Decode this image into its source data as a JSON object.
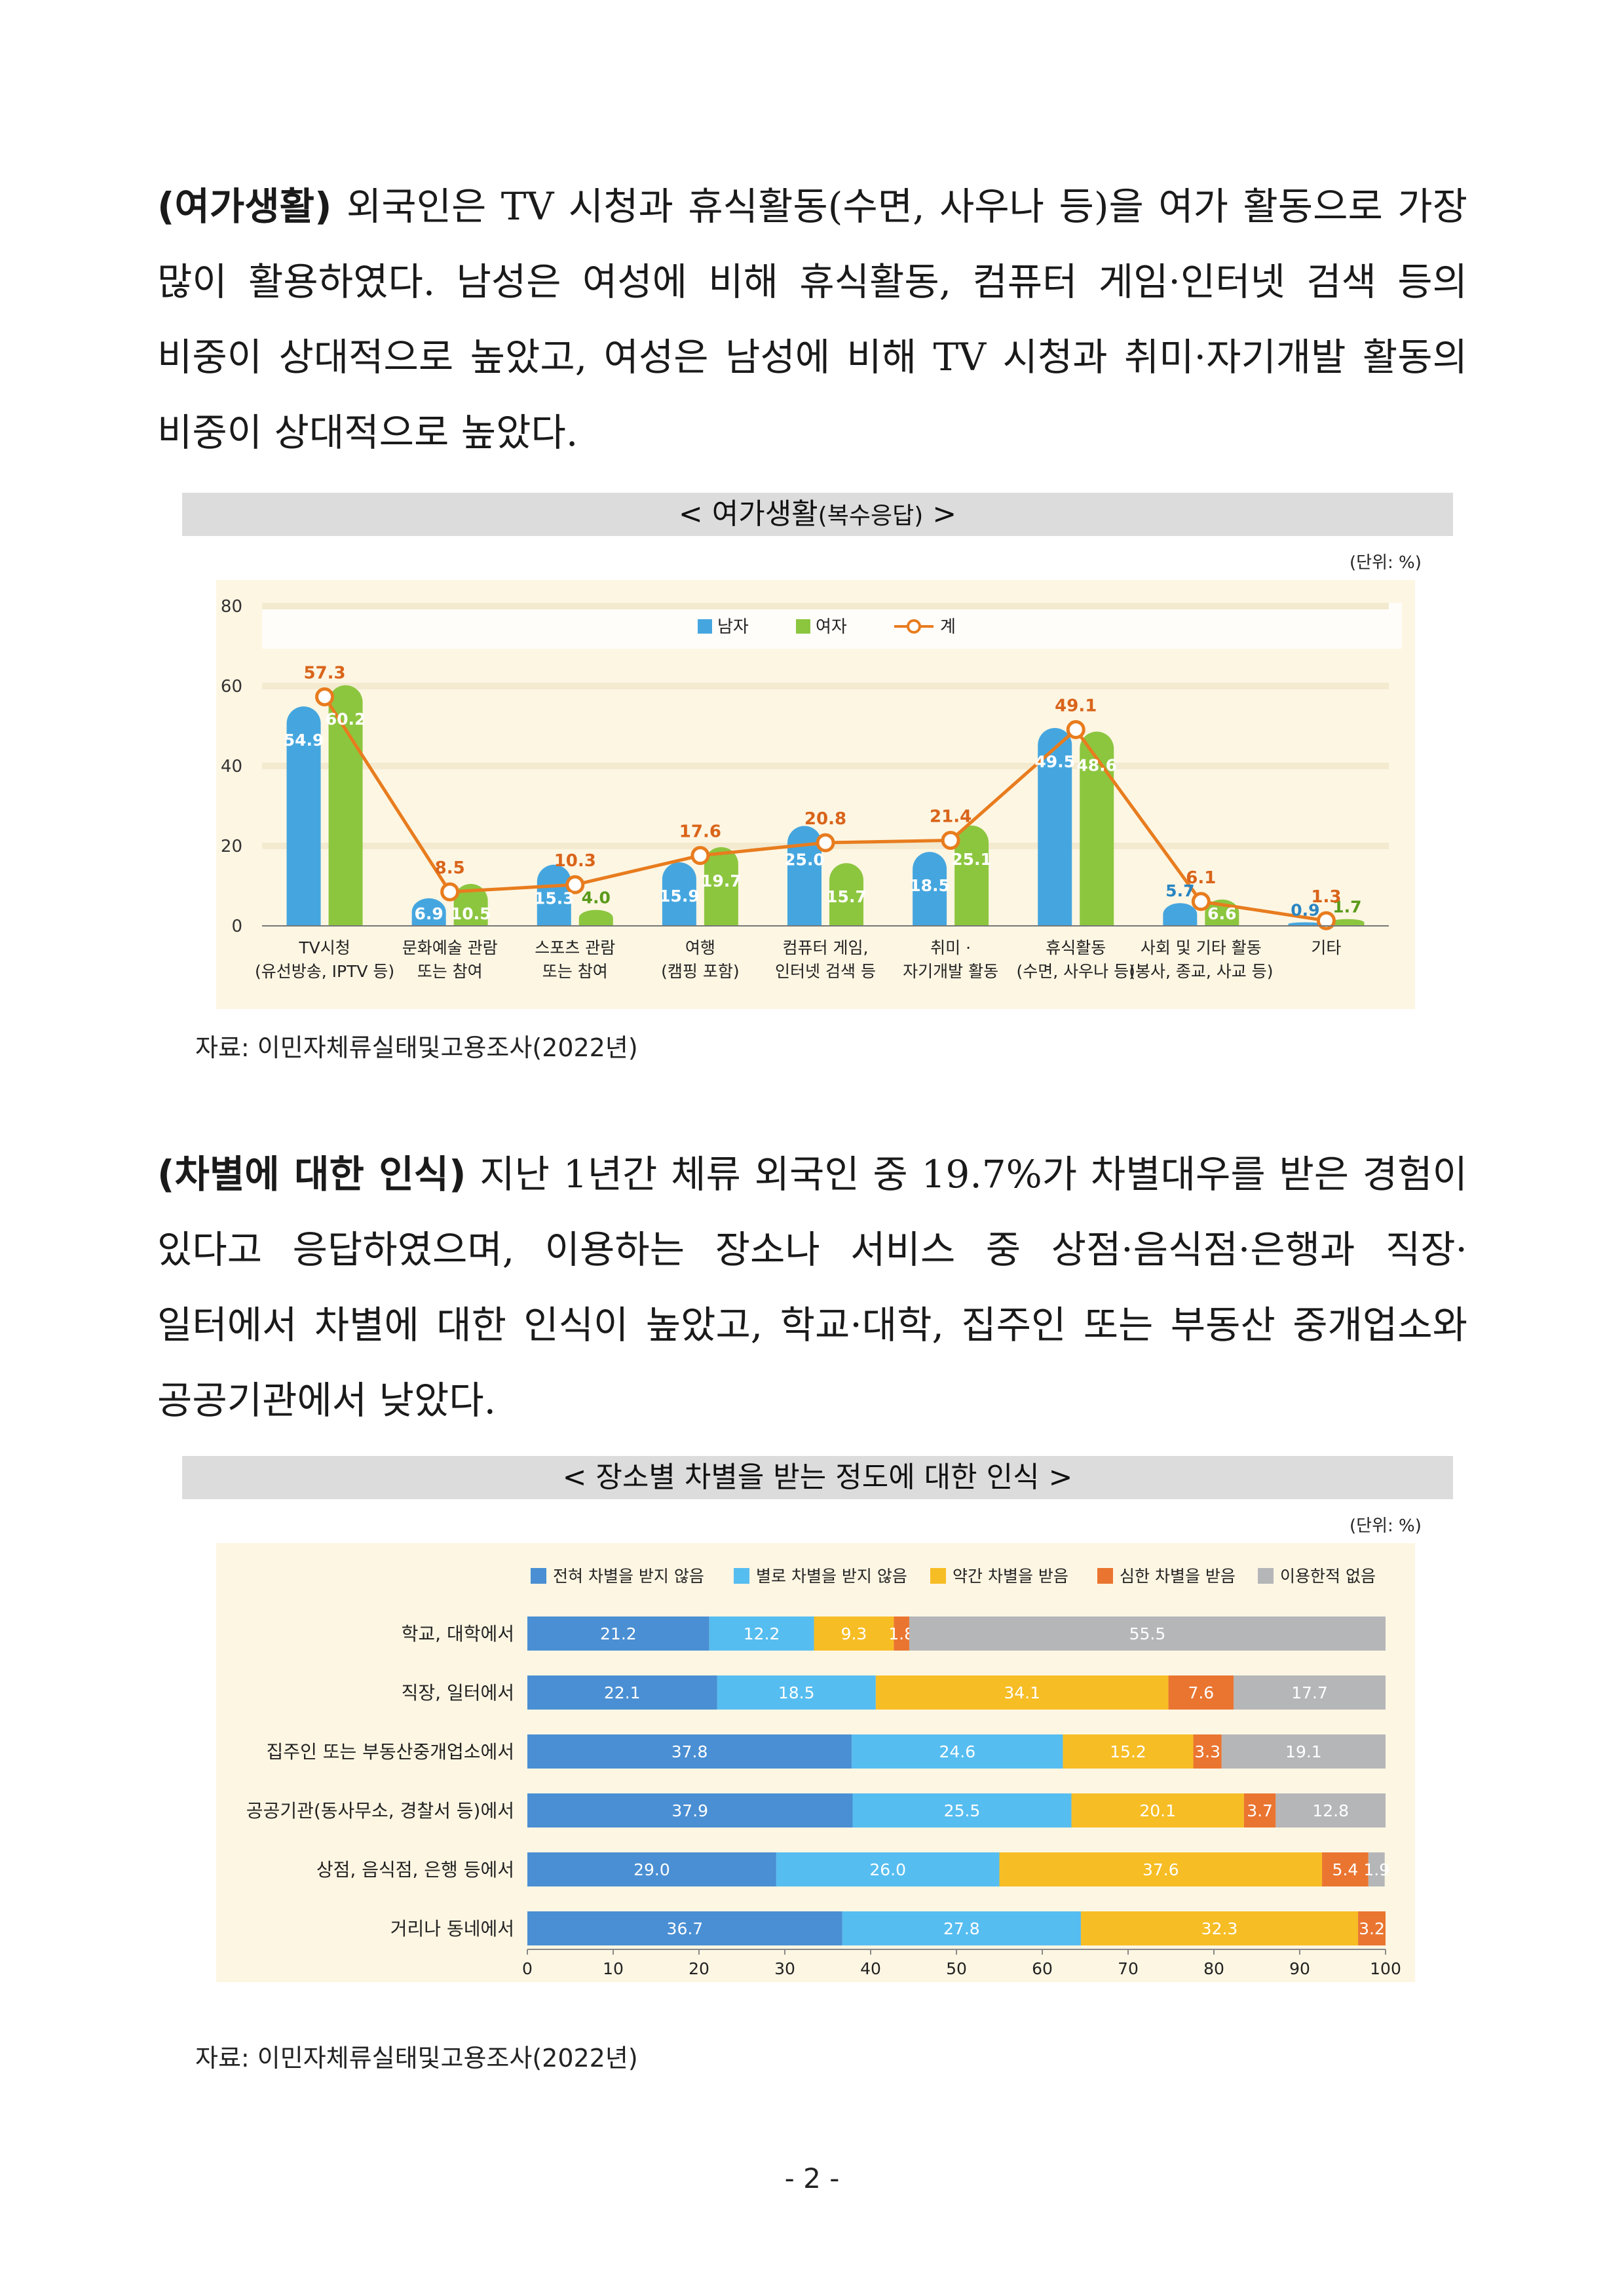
{
  "para1": {
    "lead": "(여가생활)",
    "body": " 외국인은 TV 시청과 휴식활동(수면, 사우나 등)을 여가 활동으로 가장 많이 활용하였다. 남성은 여성에 비해 휴식활동, 컴퓨터 게임·인터넷 검색 등의 비중이 상대적으로 높았고, 여성은 남성에 비해 TV 시청과 취미·자기개발 활동의 비중이 상대적으로 높았다."
  },
  "chart1_header": {
    "main": "< 여가생활",
    "sub": "(복수응답)",
    "end": " >"
  },
  "chart1_unit": "(단위: %)",
  "source1": "자료: 이민자체류실태및고용조사(2022년)",
  "para2": {
    "lead": "(차별에 대한 인식)",
    "body": " 지난 1년간 체류 외국인 중 19.7%가 차별대우를 받은 경험이 있다고 응답하였으며, 이용하는 장소나 서비스 중 상점·음식점·은행과 직장·일터에서 차별에 대한 인식이 높았고, 학교·대학, 집주인 또는 부동산 중개업소와 공공기관에서 낮았다."
  },
  "chart2_header": "< 장소별 차별을 받는 정도에 대한 인식 >",
  "chart2_unit": "(단위: %)",
  "source2": "자료: 이민자체류실태및고용조사(2022년)",
  "page_number": "- 2 -",
  "chart_data": [
    {
      "type": "bar",
      "title": "< 여가생활(복수응답) >",
      "ylim": [
        0,
        80
      ],
      "yticks": [
        0,
        20,
        40,
        60,
        80
      ],
      "categories": [
        [
          "TV시청",
          "(유선방송, IPTV 등)"
        ],
        [
          "문화예술 관람",
          "또는 참여"
        ],
        [
          "스포츠 관람",
          "또는 참여"
        ],
        [
          "여행",
          "(캠핑 포함)"
        ],
        [
          "컴퓨터 게임,",
          "인터넷 검색 등"
        ],
        [
          "취미 ·",
          "자기개발 활동"
        ],
        [
          "휴식활동",
          "(수면, 사우나 등)"
        ],
        [
          "사회 및 기타 활동",
          "(봉사, 종교, 사교 등)"
        ],
        [
          "기타",
          ""
        ]
      ],
      "series": [
        {
          "name": "남자",
          "values": [
            54.9,
            6.9,
            15.3,
            15.9,
            25.0,
            18.5,
            49.5,
            5.7,
            0.9
          ],
          "labels": [
            "54.9",
            "6.9",
            "15.3",
            "15.9",
            "25.0",
            "18.5",
            "49.5",
            "5.7",
            "0.9"
          ],
          "color": "#45a6df"
        },
        {
          "name": "여자",
          "values": [
            60.2,
            10.5,
            4.0,
            19.7,
            15.7,
            25.1,
            48.6,
            6.6,
            1.7
          ],
          "labels": [
            "60.2",
            "10.5",
            "4.0",
            "19.7",
            "15.7",
            "25.1",
            "48.6",
            "6.6",
            "1.7"
          ],
          "color": "#8cc63f"
        },
        {
          "name": "계",
          "type": "line",
          "values": [
            57.3,
            8.5,
            10.3,
            17.6,
            20.8,
            21.4,
            49.1,
            6.1,
            1.3
          ],
          "labels": [
            "57.3",
            "8.5",
            "10.3",
            "17.6",
            "20.8",
            "21.4",
            "49.1",
            "6.1",
            "1.3"
          ],
          "color": "#e87c1e"
        }
      ],
      "legend": "top-center"
    },
    {
      "type": "bar",
      "orientation": "horizontal-stacked",
      "title": "< 장소별 차별을 받는 정도에 대한 인식 >",
      "xlim": [
        0,
        100
      ],
      "xticks": [
        0,
        10,
        20,
        30,
        40,
        50,
        60,
        70,
        80,
        90,
        100
      ],
      "categories": [
        "학교, 대학에서",
        "직장, 일터에서",
        "집주인 또는 부동산중개업소에서",
        "공공기관(동사무소, 경찰서 등)에서",
        "상점, 음식점, 은행 등에서",
        "거리나 동네에서"
      ],
      "series": [
        {
          "name": "전혀 차별을 받지 않음",
          "values": [
            21.2,
            22.1,
            37.8,
            37.9,
            29.0,
            36.7
          ],
          "labels": [
            "21.2",
            "22.1",
            "37.8",
            "37.9",
            "29.0",
            "36.7"
          ],
          "color": "#4a8fd3"
        },
        {
          "name": "별로 차별을 받지 않음",
          "values": [
            12.2,
            18.5,
            24.6,
            25.5,
            26.0,
            27.8
          ],
          "labels": [
            "12.2",
            "18.5",
            "24.6",
            "25.5",
            "26.0",
            "27.8"
          ],
          "color": "#56bdf0"
        },
        {
          "name": "약간 차별을 받음",
          "values": [
            9.3,
            34.1,
            15.2,
            20.1,
            37.6,
            32.3
          ],
          "labels": [
            "9.3",
            "34.1",
            "15.2",
            "20.1",
            "37.6",
            "32.3"
          ],
          "color": "#f7bd25"
        },
        {
          "name": "심한 차별을 받음",
          "values": [
            1.8,
            7.6,
            3.3,
            3.7,
            5.4,
            3.2
          ],
          "labels": [
            "1.8",
            "7.6",
            "3.3",
            "3.7",
            "5.4",
            "3.2"
          ],
          "color": "#ea7530"
        },
        {
          "name": "이용한적 없음",
          "values": [
            55.5,
            17.7,
            19.1,
            12.8,
            1.9,
            0.0
          ],
          "labels": [
            "55.5",
            "17.7",
            "19.1",
            "12.8",
            "1.9",
            ""
          ],
          "color": "#b4b6b8"
        }
      ],
      "legend": "top-center"
    }
  ]
}
